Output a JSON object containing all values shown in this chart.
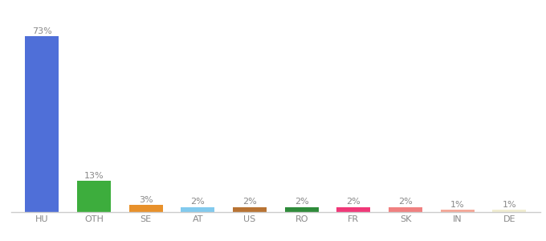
{
  "categories": [
    "HU",
    "OTH",
    "SE",
    "AT",
    "US",
    "RO",
    "FR",
    "SK",
    "IN",
    "DE"
  ],
  "values": [
    73,
    13,
    3,
    2,
    2,
    2,
    2,
    2,
    1,
    1
  ],
  "bar_colors": [
    "#4F6FD8",
    "#3DAD3D",
    "#E8912B",
    "#82CAEE",
    "#B87333",
    "#2E8B3A",
    "#F03878",
    "#F08080",
    "#F4A898",
    "#F0EDD0"
  ],
  "label_fontsize": 8,
  "tick_fontsize": 8,
  "ylim": [
    0,
    82
  ],
  "bar_width": 0.65,
  "bg_color": "#ffffff",
  "label_color": "#888888",
  "tick_color": "#888888"
}
